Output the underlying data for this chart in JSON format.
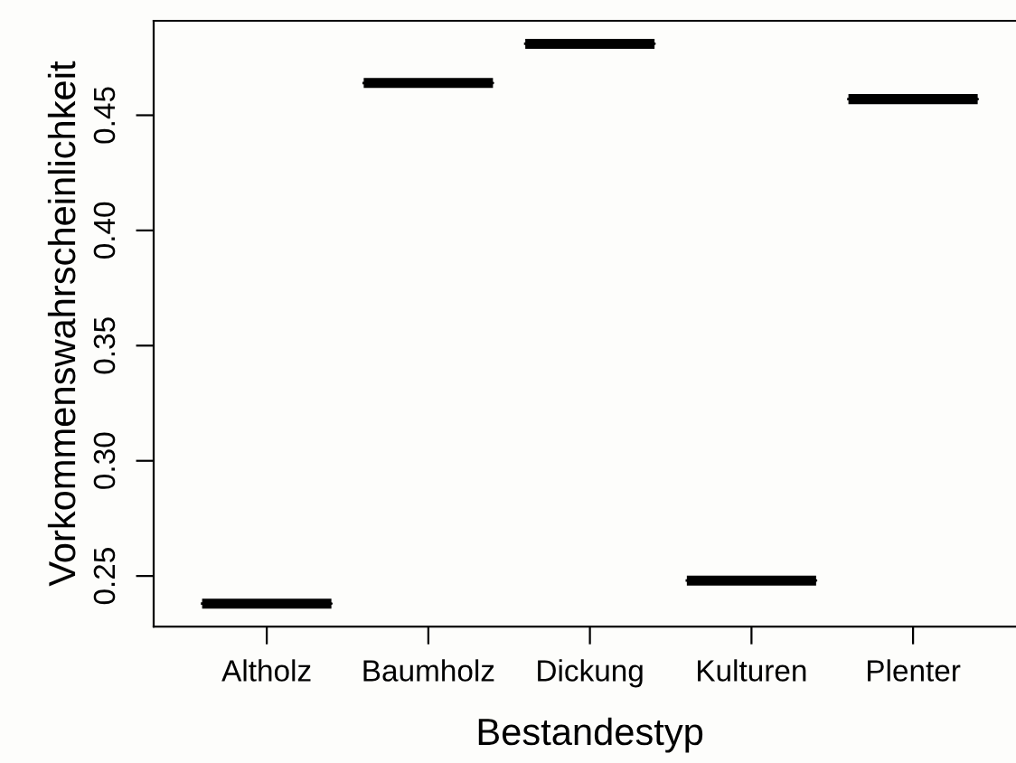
{
  "chart_data": {
    "type": "box",
    "xlabel": "Bestandestyp",
    "ylabel": "Vorkommenswahrscheinlichkeit",
    "categories": [
      "Altholz",
      "Baumholz",
      "Dickung",
      "Kulturen",
      "Plenter"
    ],
    "boxes": [
      {
        "low": 0.238,
        "q1": 0.238,
        "median": 0.238,
        "q3": 0.238,
        "high": 0.238
      },
      {
        "low": 0.464,
        "q1": 0.464,
        "median": 0.464,
        "q3": 0.464,
        "high": 0.464
      },
      {
        "low": 0.481,
        "q1": 0.481,
        "median": 0.481,
        "q3": 0.481,
        "high": 0.481
      },
      {
        "low": 0.248,
        "q1": 0.248,
        "median": 0.248,
        "q3": 0.248,
        "high": 0.248
      },
      {
        "low": 0.457,
        "q1": 0.457,
        "median": 0.457,
        "q3": 0.457,
        "high": 0.457
      }
    ],
    "color": "#000000",
    "ylim": [
      0.228,
      0.491
    ],
    "yticks": [
      0.25,
      {
        "value": 0.3,
        "label": "0.30"
      },
      0.35,
      {
        "value": 0.4,
        "label": "0.40"
      },
      0.45
    ],
    "grid": false
  }
}
